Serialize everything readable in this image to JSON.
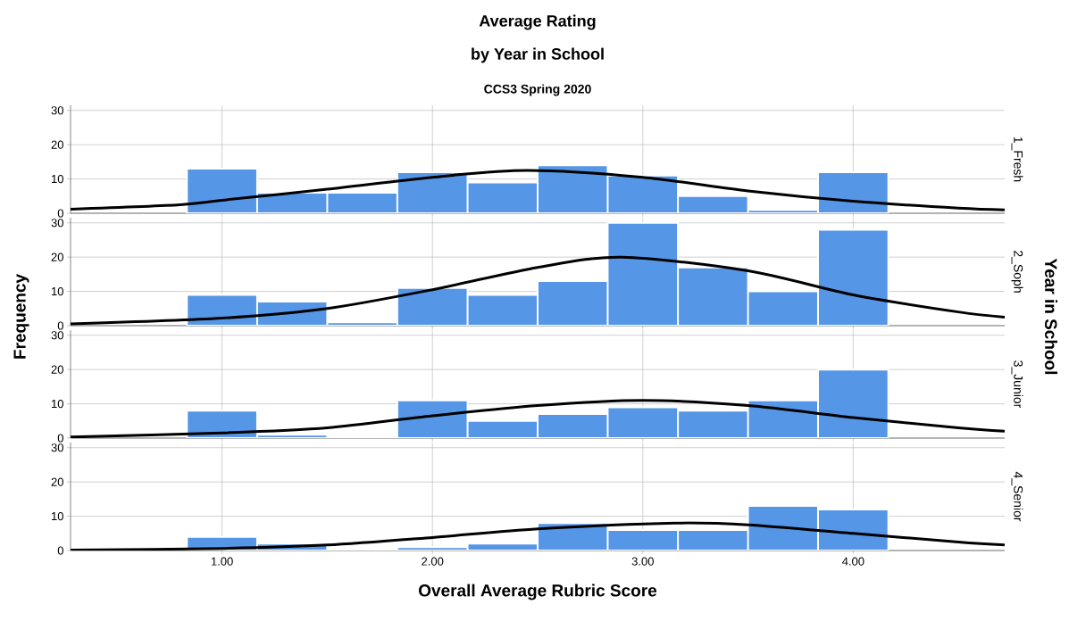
{
  "chart_data": [
    {
      "type": "histogram",
      "title": "Average Rating",
      "subtitle": "by Year in School",
      "annotations": [
        "CCS3 Spring 2020"
      ],
      "y2label": "1_Fresh",
      "bins": [
        0.833,
        1.167,
        1.5,
        1.833,
        2.167,
        2.5,
        2.833,
        3.167,
        3.5,
        3.833,
        4.167
      ],
      "xlim": [
        0.28,
        4.72
      ],
      "ylim": [
        0,
        31.5
      ],
      "xticks": [
        {
          "value": 1,
          "label": null
        },
        {
          "value": 2,
          "label": null
        },
        {
          "value": 3,
          "label": null
        },
        {
          "value": 4,
          "label": null
        }
      ],
      "yticks": [
        0,
        10,
        20,
        30
      ],
      "grid": true,
      "tick_labels": "y",
      "series": [
        {
          "color": "#5596e6",
          "values": [
            13,
            6,
            6,
            12,
            9,
            14,
            11,
            5,
            1,
            12
          ]
        },
        {
          "type": "line",
          "color": "#000000",
          "x": [
            0.28,
            0.8,
            1.0,
            1.5,
            2.0,
            2.45,
            3.0,
            3.5,
            4.0,
            4.5,
            4.72
          ],
          "values": [
            1.2,
            2.5,
            3.8,
            7,
            10.5,
            12.5,
            10.5,
            6.5,
            3.5,
            1.5,
            1.0
          ]
        }
      ]
    },
    {
      "type": "histogram",
      "ylabel": "Frequency",
      "annotations": [
        "Year in School"
      ],
      "y2label": "2_Soph",
      "bins": [
        0.833,
        1.167,
        1.5,
        1.833,
        2.167,
        2.5,
        2.833,
        3.167,
        3.5,
        3.833,
        4.167
      ],
      "xlim": [
        0.28,
        4.72
      ],
      "ylim": [
        0,
        31.5
      ],
      "xticks": [
        {
          "value": 1,
          "label": null
        },
        {
          "value": 2,
          "label": null
        },
        {
          "value": 3,
          "label": null
        },
        {
          "value": 4,
          "label": null
        }
      ],
      "yticks": [
        0,
        10,
        20,
        30
      ],
      "grid": true,
      "tick_labels": "y",
      "series": [
        {
          "color": "#5596e6",
          "values": [
            9,
            7,
            1,
            11,
            9,
            13,
            30,
            17,
            10,
            28
          ]
        },
        {
          "type": "line",
          "color": "#000000",
          "x": [
            0.28,
            1.0,
            1.5,
            2.0,
            2.5,
            2.9,
            3.5,
            4.0,
            4.5,
            4.72
          ],
          "values": [
            0.5,
            2.2,
            5,
            10.5,
            17,
            20,
            16,
            9,
            4,
            2.5
          ]
        }
      ]
    },
    {
      "type": "histogram",
      "y2label": "3_Junior",
      "bins": [
        0.833,
        1.167,
        1.5,
        1.833,
        2.167,
        2.5,
        2.833,
        3.167,
        3.5,
        3.833,
        4.167
      ],
      "xlim": [
        0.28,
        4.72
      ],
      "ylim": [
        0,
        31.5
      ],
      "xticks": [
        {
          "value": 1,
          "label": null
        },
        {
          "value": 2,
          "label": null
        },
        {
          "value": 3,
          "label": null
        },
        {
          "value": 4,
          "label": null
        }
      ],
      "yticks": [
        0,
        10,
        20,
        30
      ],
      "grid": true,
      "tick_labels": "y",
      "series": [
        {
          "color": "#5596e6",
          "values": [
            8,
            1,
            0,
            11,
            5,
            7,
            9,
            8,
            11,
            20
          ]
        },
        {
          "type": "line",
          "color": "#000000",
          "x": [
            0.28,
            1.0,
            1.5,
            2.0,
            2.5,
            3.0,
            3.5,
            4.0,
            4.5,
            4.72
          ],
          "values": [
            0.3,
            1.5,
            3,
            6.5,
            9.5,
            11,
            9.5,
            6,
            3,
            2
          ]
        }
      ]
    },
    {
      "type": "histogram",
      "y2label": "4_Senior",
      "xlabel": "Overall Average Rubric Score",
      "bins": [
        0.833,
        1.167,
        1.5,
        1.833,
        2.167,
        2.5,
        2.833,
        3.167,
        3.5,
        3.833,
        4.167
      ],
      "xlim": [
        0.28,
        4.72
      ],
      "ylim": [
        0,
        31.5
      ],
      "xticks": [
        {
          "value": 1,
          "label": "1.00"
        },
        {
          "value": 2,
          "label": "2.00"
        },
        {
          "value": 3,
          "label": "3.00"
        },
        {
          "value": 4,
          "label": "4.00"
        }
      ],
      "yticks": [
        0,
        10,
        20,
        30
      ],
      "grid": true,
      "series": [
        {
          "color": "#5596e6",
          "values": [
            4,
            2,
            0,
            1,
            2,
            8,
            6,
            6,
            13,
            12
          ]
        },
        {
          "type": "line",
          "color": "#000000",
          "x": [
            0.28,
            1.0,
            1.5,
            2.0,
            2.5,
            3.15,
            3.5,
            4.0,
            4.5,
            4.72
          ],
          "values": [
            0.1,
            0.6,
            1.6,
            3.8,
            6.3,
            8,
            7.5,
            5,
            2.5,
            1.6
          ]
        }
      ]
    }
  ]
}
